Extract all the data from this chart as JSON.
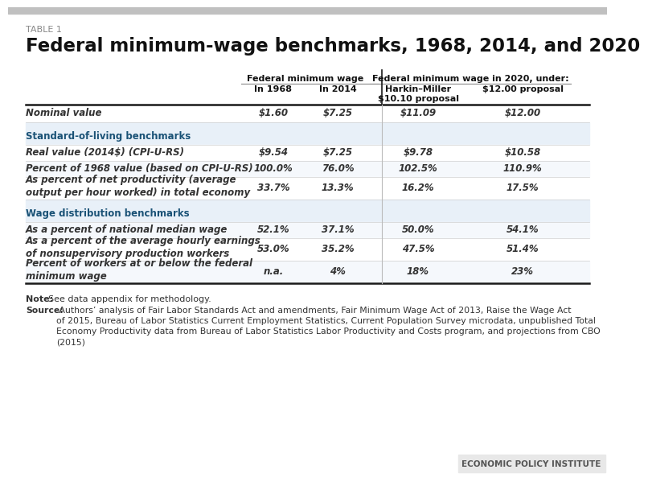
{
  "table_label": "TABLE 1",
  "title": "Federal minimum-wage benchmarks, 1968, 2014, and 2020",
  "col_headers": [
    [
      "",
      "Federal minimum wage",
      "",
      "Federal minimum wage in 2020, under:",
      ""
    ],
    [
      "",
      "In 1968",
      "In 2014",
      "Harkin–Miller\n$10.10 proposal",
      "$12.00 proposal"
    ]
  ],
  "rows": [
    {
      "label": "Nominal value",
      "values": [
        "$1.60",
        "$7.25",
        "$11.09",
        "$12.00"
      ],
      "style": "normal",
      "bold_label": true
    },
    {
      "label": "Standard-of-living benchmarks",
      "values": [
        "",
        "",
        "",
        ""
      ],
      "style": "section_header"
    },
    {
      "label": "Real value (2014$) (CPI-U-RS)",
      "values": [
        "$9.54",
        "$7.25",
        "$9.78",
        "$10.58"
      ],
      "style": "italic"
    },
    {
      "label": "Percent of 1968 value (based on CPI-U-RS)",
      "values": [
        "100.0%",
        "76.0%",
        "102.5%",
        "110.9%"
      ],
      "style": "italic"
    },
    {
      "label": "As percent of net productivity (average\noutput per hour worked) in total economy",
      "values": [
        "33.7%",
        "13.3%",
        "16.2%",
        "17.5%"
      ],
      "style": "italic"
    },
    {
      "label": "Wage distribution benchmarks",
      "values": [
        "",
        "",
        "",
        ""
      ],
      "style": "section_header"
    },
    {
      "label": "As a percent of national median wage",
      "values": [
        "52.1%",
        "37.1%",
        "50.0%",
        "54.1%"
      ],
      "style": "italic"
    },
    {
      "label": "As a percent of the average hourly earnings\nof nonsupervisory production workers",
      "values": [
        "53.0%",
        "35.2%",
        "47.5%",
        "51.4%"
      ],
      "style": "italic"
    },
    {
      "label": "Percent of workers at or below the federal\nminimum wage",
      "values": [
        "n.a.",
        "4%",
        "18%",
        "23%"
      ],
      "style": "italic"
    }
  ],
  "note_text": "Note: See data appendix for methodology.",
  "source_text": "Source: Authors' analysis of Fair Labor Standards Act and amendments, Fair Minimum Wage Act of 2013, Raise the Wage Act\nof 2015, Bureau of Labor Statistics Current Employment Statistics, Current Population Survey microdata, unpublished Total\nEconomy Productivity data from Bureau of Labor Statistics Labor Productivity and Costs program, and projections from CBO\n(2015)",
  "footer_text": "ECONOMIC POLICY INSTITUTE",
  "bg_color": "#ffffff",
  "header_bg": "#ffffff",
  "section_bg": "#e8f0f8",
  "row_alt_bg": "#f5f8fc",
  "row_normal_bg": "#ffffff",
  "section_header_color": "#1a5276",
  "thick_line_color": "#1a1a1a",
  "thin_line_color": "#cccccc",
  "top_bar_color": "#c0c0c0",
  "footer_bg": "#e8e8e8",
  "text_color": "#333333",
  "col_divider_color": "#1a1a1a"
}
